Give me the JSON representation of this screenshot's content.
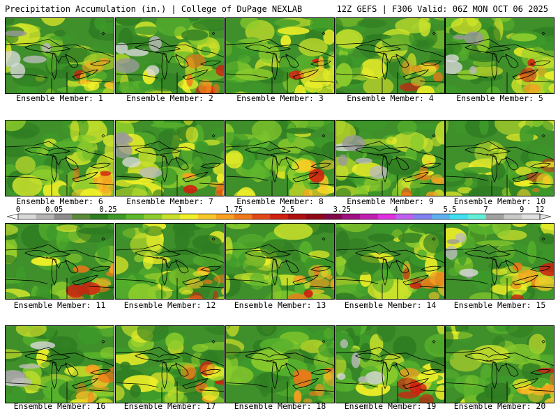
{
  "header": {
    "left": "Precipitation Accumulation (in.) | College of DuPage NEXLAB",
    "right": "12Z GEFS | F306 Valid: 06Z MON OCT 06 2025"
  },
  "colorbar": {
    "labels": [
      "0",
      "0.05",
      "0.25",
      "1",
      "1.75",
      "2.5",
      "3.25",
      "4",
      "5.5",
      "7",
      "9",
      "12"
    ],
    "colors": [
      "#d8d8d8",
      "#b4b4b4",
      "#8c8c8c",
      "#5a8a3a",
      "#2e7d1e",
      "#3d9a2a",
      "#5cb82c",
      "#8ccc2c",
      "#c8e02c",
      "#f0f028",
      "#f8c828",
      "#f8a020",
      "#f07818",
      "#e04818",
      "#d02010",
      "#b01010",
      "#900818",
      "#800848",
      "#a01080",
      "#c020b0",
      "#e030e0",
      "#c060f0",
      "#8080f0",
      "#60b0f0",
      "#40e0f0",
      "#60f0d8",
      "#a0a0a0",
      "#c8c8c8",
      "#e0e0e0"
    ]
  },
  "panels": [
    {
      "caption": "Ensemble Member: 1"
    },
    {
      "caption": "Ensemble Member: 2"
    },
    {
      "caption": "Ensemble Member: 3"
    },
    {
      "caption": "Ensemble Member: 4"
    },
    {
      "caption": "Ensemble Member: 5"
    },
    {
      "caption": "Ensemble Member: 6"
    },
    {
      "caption": "Ensemble Member: 7"
    },
    {
      "caption": "Ensemble Member: 8"
    },
    {
      "caption": "Ensemble Member: 9"
    },
    {
      "caption": "Ensemble Member: 10"
    },
    {
      "caption": "Ensemble Member: 11"
    },
    {
      "caption": "Ensemble Member: 12"
    },
    {
      "caption": "Ensemble Member: 13"
    },
    {
      "caption": "Ensemble Member: 14"
    },
    {
      "caption": "Ensemble Member: 15"
    },
    {
      "caption": "Ensemble Member: 16"
    },
    {
      "caption": "Ensemble Member: 17"
    },
    {
      "caption": "Ensemble Member: 18"
    },
    {
      "caption": "Ensemble Member: 19"
    },
    {
      "caption": "Ensemble Member: 20"
    }
  ]
}
